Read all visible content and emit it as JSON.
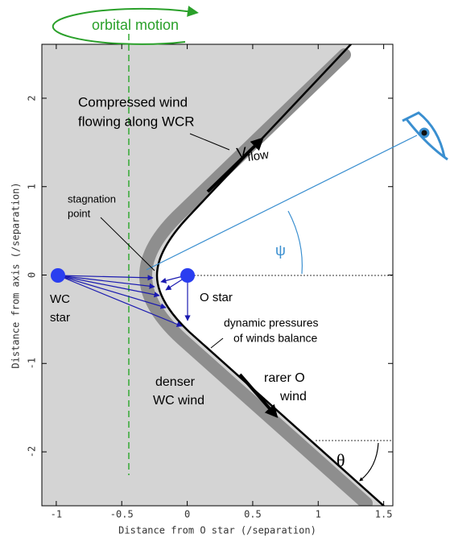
{
  "axes": {
    "xlabel": "Distance from O star (/separation)",
    "ylabel": "Distance from axis (/separation)",
    "xlim": [
      -1.11,
      1.57
    ],
    "ylim": [
      -2.61,
      2.61
    ],
    "xticks": [
      -1,
      -0.5,
      0,
      0.5,
      1,
      1.5
    ],
    "yticks": [
      -2,
      -1,
      0,
      1,
      2
    ]
  },
  "annotations": {
    "orbital_motion": "orbital motion",
    "compressed": [
      "Compressed wind",
      "flowing along WCR"
    ],
    "v": "V",
    "v_sub": "flow",
    "stagnation": [
      "stagnation",
      "point"
    ],
    "psi": "ψ",
    "wc_star": [
      "WC",
      "star"
    ],
    "o_star": "O star",
    "dynamic": [
      "dynamic pressures",
      "of winds balance"
    ],
    "denser": [
      "denser",
      "WC wind"
    ],
    "rarer": [
      "rarer O",
      "wind"
    ],
    "theta": "θ"
  }
}
